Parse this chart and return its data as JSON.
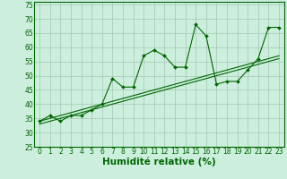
{
  "xlabel": "Humidité relative (%)",
  "background_color": "#cceedd",
  "grid_color": "#aaccbb",
  "line_color": "#006600",
  "marker_color": "#006600",
  "x": [
    0,
    1,
    2,
    3,
    4,
    5,
    6,
    7,
    8,
    9,
    10,
    11,
    12,
    13,
    14,
    15,
    16,
    17,
    18,
    19,
    20,
    21,
    22,
    23
  ],
  "y_main": [
    34,
    36,
    34,
    36,
    36,
    38,
    40,
    49,
    46,
    46,
    57,
    59,
    57,
    53,
    53,
    68,
    64,
    47,
    48,
    48,
    52,
    56,
    67,
    67
  ],
  "y_linear1": [
    33,
    34,
    35,
    36,
    37,
    38,
    39,
    40,
    41,
    42,
    43,
    44,
    45,
    46,
    47,
    48,
    49,
    50,
    51,
    52,
    53,
    54,
    55,
    56
  ],
  "y_linear2": [
    34,
    35,
    36,
    37,
    38,
    39,
    40,
    41,
    42,
    43,
    44,
    45,
    46,
    47,
    48,
    49,
    50,
    51,
    52,
    53,
    54,
    55,
    56,
    57
  ],
  "ylim": [
    25,
    76
  ],
  "xlim": [
    -0.5,
    23.5
  ],
  "yticks": [
    25,
    30,
    35,
    40,
    45,
    50,
    55,
    60,
    65,
    70,
    75
  ],
  "xticks": [
    0,
    1,
    2,
    3,
    4,
    5,
    6,
    7,
    8,
    9,
    10,
    11,
    12,
    13,
    14,
    15,
    16,
    17,
    18,
    19,
    20,
    21,
    22,
    23
  ],
  "tick_fontsize": 5.5,
  "xlabel_fontsize": 7.5
}
